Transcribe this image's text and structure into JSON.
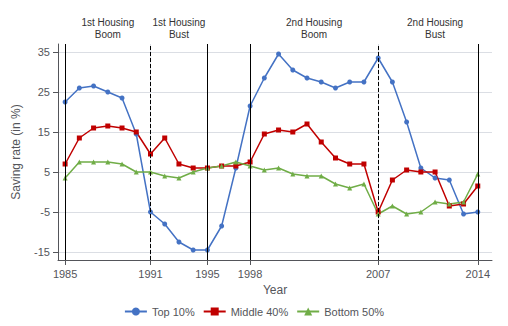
{
  "chart_data": {
    "type": "line",
    "x": [
      1985,
      1986,
      1987,
      1988,
      1989,
      1990,
      1991,
      1992,
      1993,
      1994,
      1995,
      1996,
      1997,
      1998,
      1999,
      2000,
      2001,
      2002,
      2003,
      2004,
      2005,
      2006,
      2007,
      2008,
      2009,
      2010,
      2011,
      2012,
      2013,
      2014
    ],
    "series": [
      {
        "name": "Top 10%",
        "color": "#4472C4",
        "marker": "circle",
        "values": [
          22.5,
          26.0,
          26.5,
          25.0,
          23.5,
          14.5,
          -5.0,
          -8.0,
          -12.5,
          -14.5,
          -14.5,
          -8.5,
          6.0,
          21.5,
          28.5,
          34.5,
          30.5,
          28.5,
          27.5,
          26.0,
          27.5,
          27.5,
          33.5,
          27.5,
          17.5,
          6.0,
          3.5,
          3.0,
          -5.5,
          -5.0
        ]
      },
      {
        "name": "Middle 40%",
        "color": "#C00000",
        "marker": "square",
        "values": [
          7.0,
          13.5,
          16.0,
          16.5,
          16.0,
          15.0,
          9.5,
          13.5,
          7.0,
          6.0,
          6.0,
          6.5,
          6.5,
          7.5,
          14.5,
          15.5,
          15.0,
          17.0,
          12.5,
          8.5,
          7.0,
          7.0,
          -5.0,
          3.0,
          5.5,
          5.0,
          5.0,
          -3.5,
          -3.0,
          1.5
        ]
      },
      {
        "name": "Bottom 50%",
        "color": "#70AD47",
        "marker": "triangle",
        "values": [
          3.5,
          7.5,
          7.5,
          7.5,
          7.0,
          5.0,
          5.0,
          4.0,
          3.5,
          5.0,
          6.0,
          6.5,
          7.5,
          6.5,
          5.5,
          6.0,
          4.5,
          4.0,
          4.0,
          2.0,
          1.0,
          2.0,
          -5.5,
          -3.5,
          -5.5,
          -5.0,
          -2.5,
          -3.0,
          -2.5,
          4.5
        ]
      }
    ],
    "vlines": [
      {
        "x": 1985,
        "line_style": "solid"
      },
      {
        "x": 1995,
        "line_style": "solid"
      },
      {
        "x": 1998,
        "line_style": "solid"
      },
      {
        "x": 2014,
        "line_style": "solid"
      },
      {
        "x": 1991,
        "line_style": "dashed"
      },
      {
        "x": 2007,
        "line_style": "dashed"
      }
    ],
    "annotations": [
      {
        "x": 1988.0,
        "text": "1st Housing\nBoom"
      },
      {
        "x": 1993.0,
        "text": "1st Housing\nBust"
      },
      {
        "x": 2002.5,
        "text": "2nd Housing\nBoom"
      },
      {
        "x": 2011.0,
        "text": "2nd Housing\nBust"
      }
    ],
    "xlabel": "Year",
    "ylabel": "Saving rate (in %)",
    "xlim": [
      1984.5,
      2015.0
    ],
    "ylim": [
      -17,
      37
    ],
    "xticks": [
      1985,
      1991,
      1995,
      1998,
      2007,
      2014
    ],
    "yticks": [
      -15,
      -5,
      5,
      15,
      25,
      35
    ],
    "grid": true,
    "legend": "bottom"
  }
}
